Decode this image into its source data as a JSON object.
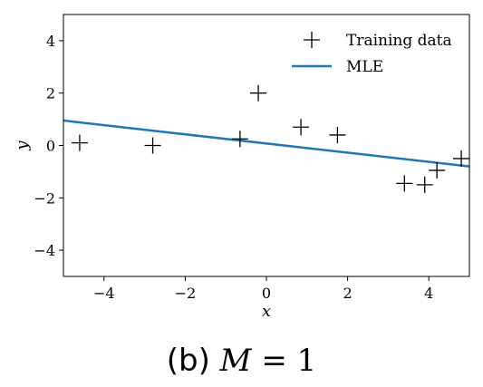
{
  "chart_data": {
    "type": "scatter",
    "xlabel": "x",
    "ylabel": "y",
    "xlim": [
      -5.0,
      5.0
    ],
    "ylim": [
      -5.0,
      5.0
    ],
    "xticks": [
      -4,
      -2,
      0,
      2,
      4
    ],
    "yticks": [
      -4,
      -2,
      0,
      2,
      4
    ],
    "xtick_labels": [
      "−4",
      "−2",
      "0",
      "2",
      "4"
    ],
    "ytick_labels": [
      "−4",
      "−2",
      "0",
      "2",
      "4"
    ],
    "grid": false,
    "legend_position": "top-right",
    "series": [
      {
        "name": "Training data",
        "type": "scatter",
        "marker": "+",
        "color": "#000000",
        "points": [
          {
            "x": -4.6,
            "y": 0.1
          },
          {
            "x": -2.8,
            "y": 0.0
          },
          {
            "x": -0.65,
            "y": 0.25
          },
          {
            "x": -0.2,
            "y": 2.0
          },
          {
            "x": 0.85,
            "y": 0.7
          },
          {
            "x": 1.75,
            "y": 0.4
          },
          {
            "x": 3.4,
            "y": -1.45
          },
          {
            "x": 3.9,
            "y": -1.5
          },
          {
            "x": 4.2,
            "y": -0.95
          },
          {
            "x": 4.8,
            "y": -0.5
          }
        ]
      },
      {
        "name": "MLE",
        "type": "line",
        "color": "#1f77b4",
        "points": [
          {
            "x": -5.0,
            "y": 0.95
          },
          {
            "x": 5.0,
            "y": -0.8
          }
        ]
      }
    ]
  },
  "caption": {
    "prefix": "(b)",
    "variable": "M",
    "relation": "= 1"
  }
}
